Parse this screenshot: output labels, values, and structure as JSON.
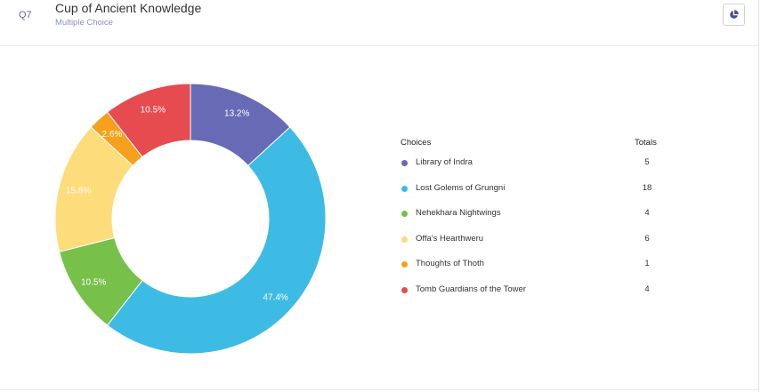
{
  "question": {
    "number": "Q7",
    "title": "Cup of Ancient Knowledge",
    "type": "Multiple Choice",
    "chart_toggle_icon": "pie-chart-icon"
  },
  "legend": {
    "choices_header": "Choices",
    "totals_header": "Totals"
  },
  "chart_data": {
    "type": "pie",
    "variant": "donut",
    "categories": [
      "Library of Indra",
      "Lost Golems of Grungni",
      "Nehekhara Nightwings",
      "Offa's Hearthweru",
      "Thoughts of Thoth",
      "Tomb Guardians of the Tower"
    ],
    "values": [
      5,
      18,
      4,
      6,
      1,
      4
    ],
    "percent_labels": [
      "13.2%",
      "47.4%",
      "10.5%",
      "15.8%",
      "2.6%",
      "10.5%"
    ],
    "colors": [
      "#676bb5",
      "#3dbbe5",
      "#77c04a",
      "#fddc7c",
      "#f6a01d",
      "#e64b50"
    ],
    "legend_position": "right"
  }
}
